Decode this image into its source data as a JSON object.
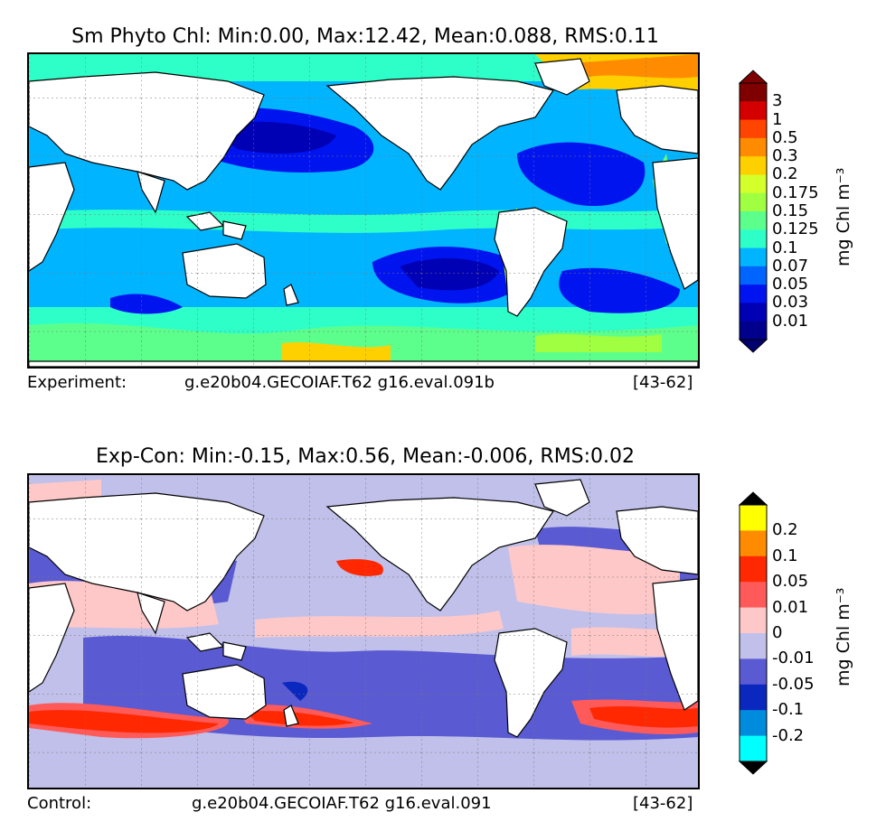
{
  "top_panel": {
    "title": "Sm Phyto Chl: Min:0.00, Max:12.42, Mean:0.088, RMS:0.11",
    "footer_label": "Experiment:",
    "footer_case": "g.e20b04.GECOIAF.T62 g16.eval.091b",
    "footer_years": "[43-62]",
    "colorbar": {
      "unit": "mg Chl m⁻³",
      "labels": [
        "3",
        "1",
        "0.5",
        "0.3",
        "0.2",
        "0.175",
        "0.15",
        "0.125",
        "0.1",
        "0.07",
        "0.05",
        "0.03",
        "0.01"
      ],
      "colors": [
        "#7f0000",
        "#d40000",
        "#ff4500",
        "#ff8c00",
        "#ffd000",
        "#d4ff2a",
        "#a0ff40",
        "#5cff8c",
        "#2effc8",
        "#00b4ff",
        "#0064ff",
        "#0014f0",
        "#0000b4",
        "#00008c"
      ],
      "over": "#7f0000",
      "under": "#00006e"
    }
  },
  "bottom_panel": {
    "title": "Exp-Con: Min:-0.15, Max:0.56, Mean:-0.006, RMS:0.02",
    "footer_label": "Control:",
    "footer_case": "g.e20b04.GECOIAF.T62 g16.eval.091",
    "footer_years": "[43-62]",
    "colorbar": {
      "unit": "mg Chl m⁻³",
      "labels": [
        "0.2",
        "0.1",
        "0.05",
        "0.01",
        "0",
        "-0.01",
        "-0.05",
        "-0.1",
        "-0.2"
      ],
      "colors": [
        "#ffff00",
        "#ff8c00",
        "#ff2800",
        "#ff5a5a",
        "#ffc8c8",
        "#c0c0ea",
        "#5a5ad2",
        "#0a28be",
        "#008cdc",
        "#00ffff"
      ],
      "over": "#000000",
      "under": "#000000"
    }
  }
}
